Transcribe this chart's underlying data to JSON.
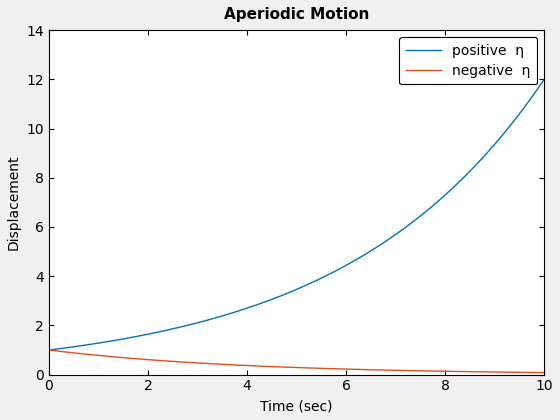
{
  "title": "Aperiodic Motion",
  "xlabel": "Time (sec)",
  "ylabel": "Displacement",
  "xlim": [
    0,
    10
  ],
  "ylim": [
    0,
    14
  ],
  "xticks": [
    0,
    2,
    4,
    6,
    8,
    10
  ],
  "yticks": [
    0,
    2,
    4,
    6,
    8,
    10,
    12,
    14
  ],
  "t_start": 0,
  "t_end": 10,
  "n_points": 1000,
  "eta": 0.2485,
  "positive_color": "#0072BD",
  "negative_color": "#D95319",
  "positive_label": "positive  η",
  "negative_label": "negative  η",
  "linewidth": 1.0,
  "legend_loc": "upper right",
  "plot_bg_color": "#ffffff",
  "fig_bg_color": "#f0f0f0",
  "title_fontsize": 11,
  "label_fontsize": 10,
  "tick_fontsize": 10
}
